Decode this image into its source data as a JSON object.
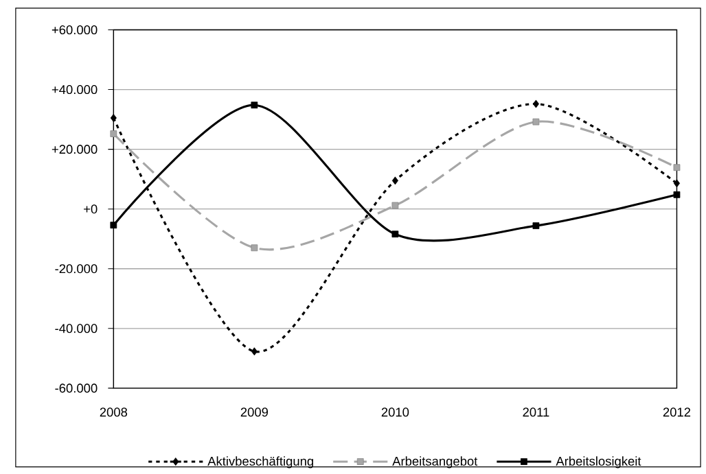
{
  "chart_data": {
    "type": "line",
    "categories": [
      "2008",
      "2009",
      "2010",
      "2011",
      "2012"
    ],
    "series": [
      {
        "name": "Aktivbeschäftigung",
        "color": "#000000",
        "marker": "diamond",
        "line_style": "dotted",
        "values": [
          30500,
          -47700,
          9500,
          35200,
          8600
        ]
      },
      {
        "name": "Arbeitsangebot",
        "color": "#a6a6a6",
        "marker": "square",
        "line_style": "dashed",
        "values": [
          25200,
          -13000,
          1200,
          29200,
          13900
        ]
      },
      {
        "name": "Arbeitslosigkeit",
        "color": "#000000",
        "marker": "square",
        "line_style": "solid",
        "values": [
          -5400,
          34800,
          -8400,
          -5600,
          4800
        ]
      }
    ],
    "ylim": [
      -60000,
      60000
    ],
    "yticks": [
      {
        "value": -60000,
        "label": "-60.000"
      },
      {
        "value": -40000,
        "label": "-40.000"
      },
      {
        "value": -20000,
        "label": "-20.000"
      },
      {
        "value": 0,
        "label": "+0"
      },
      {
        "value": 20000,
        "label": "+20.000"
      },
      {
        "value": 40000,
        "label": "+40.000"
      },
      {
        "value": 60000,
        "label": "+60.000"
      }
    ],
    "grid": "y",
    "legend": "bottom"
  }
}
